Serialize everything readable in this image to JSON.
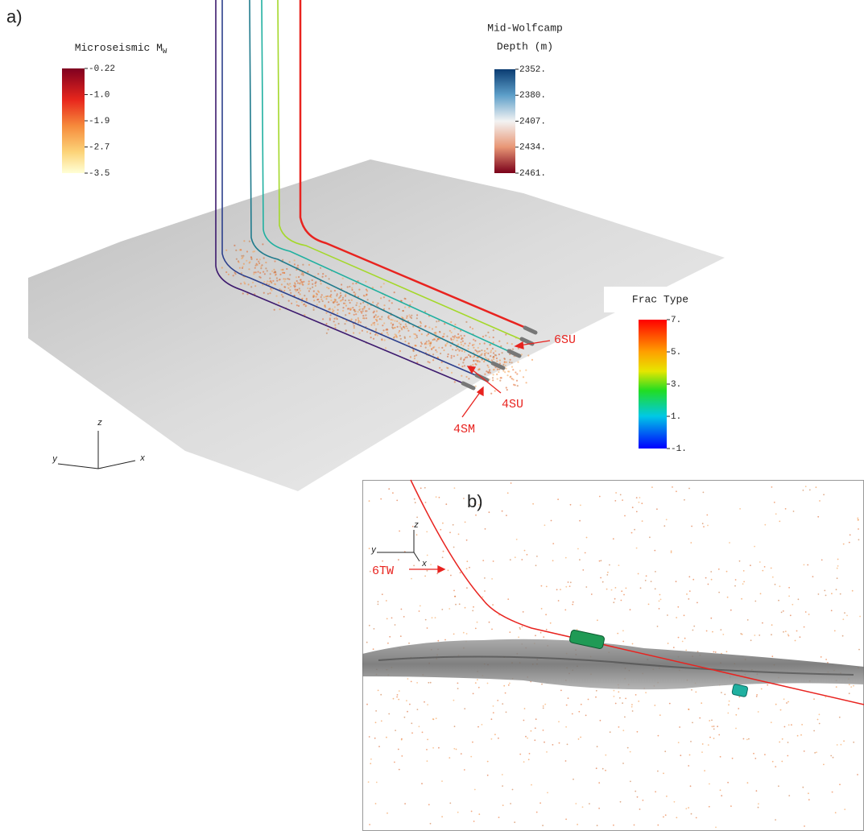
{
  "panel_a": {
    "label": "a)",
    "microseismic": {
      "title": "Microseismic M",
      "title_sub": "W",
      "ticks": [
        "-0.22",
        "-1.0",
        "-1.9",
        "-2.7",
        "-3.5"
      ]
    },
    "wolfcamp": {
      "title_lines": [
        "Mid-Wolfcamp",
        "Depth (m)"
      ],
      "ticks": [
        "2352.",
        "2380.",
        "2407.",
        "2434.",
        "2461."
      ]
    },
    "frac": {
      "title": "Frac Type",
      "ticks": [
        "7.",
        "5.",
        "3.",
        "1.",
        "-1."
      ]
    },
    "well_labels": [
      "6SU",
      "4SU",
      "4SM"
    ],
    "axes": [
      "z",
      "y",
      "x"
    ]
  },
  "panel_b": {
    "label": "b)",
    "well_label": "6TW",
    "axes": [
      "z",
      "y",
      "x"
    ]
  }
}
